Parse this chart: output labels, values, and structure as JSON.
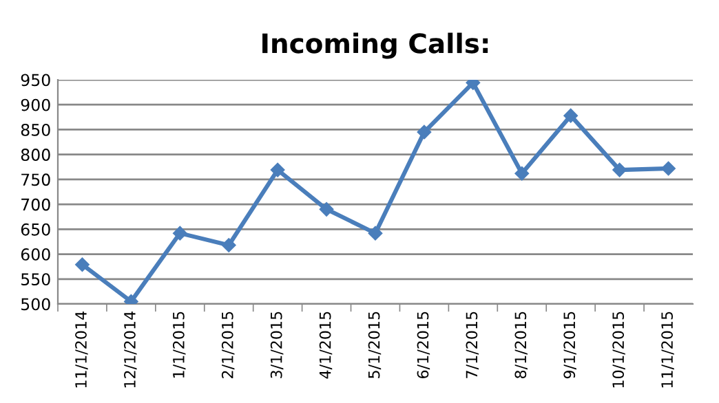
{
  "chart_data": {
    "type": "line",
    "title": "Incoming Calls:",
    "categories": [
      "11/1/2014",
      "12/1/2014",
      "1/1/2015",
      "2/1/2015",
      "3/1/2015",
      "4/1/2015",
      "5/1/2015",
      "6/1/2015",
      "7/1/2015",
      "8/1/2015",
      "9/1/2015",
      "10/1/2015",
      "11/1/2015"
    ],
    "series": [
      {
        "color": "#4a7ebb",
        "values": [
          579,
          505,
          642,
          618,
          769,
          690,
          642,
          845,
          944,
          762,
          878,
          769,
          772
        ]
      }
    ],
    "ylim": [
      500,
      950
    ],
    "yticks": [
      500,
      550,
      600,
      650,
      700,
      750,
      800,
      850,
      900,
      950
    ],
    "grid": "y",
    "marker": "diamond",
    "line_style": "solid"
  }
}
